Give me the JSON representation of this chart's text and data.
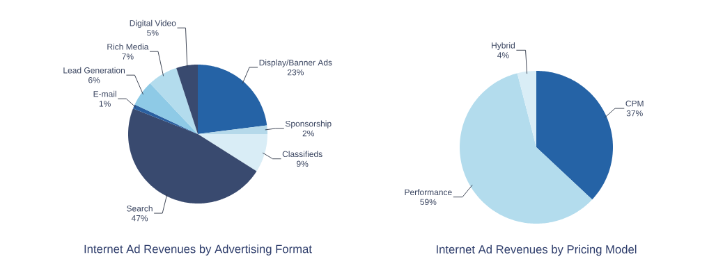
{
  "chart_data": [
    {
      "type": "pie",
      "title": "Internet Ad Revenues by Advertising Format",
      "categories": [
        "Display/Banner Ads",
        "Sponsorship",
        "Classifieds",
        "Search",
        "E-mail",
        "Lead Generation",
        "Rich Media",
        "Digital Video"
      ],
      "values": [
        23,
        2,
        9,
        47,
        1,
        6,
        7,
        5
      ],
      "value_labels": [
        "23%",
        "2%",
        "9%",
        "47%",
        "1%",
        "6%",
        "7%",
        "5%"
      ],
      "colors": [
        "#2563a6",
        "#b5d9ea",
        "#d9edf6",
        "#394a6f",
        "#2a5fa0",
        "#8ecae6",
        "#b3dced",
        "#394a6f"
      ]
    },
    {
      "type": "pie",
      "title": "Internet Ad Revenues by Pricing Model",
      "categories": [
        "CPM",
        "Performance",
        "Hybrid"
      ],
      "values": [
        37,
        59,
        4
      ],
      "value_labels": [
        "37%",
        "59%",
        "4%"
      ],
      "colors": [
        "#2563a6",
        "#b3dced",
        "#d9edf6"
      ]
    }
  ]
}
